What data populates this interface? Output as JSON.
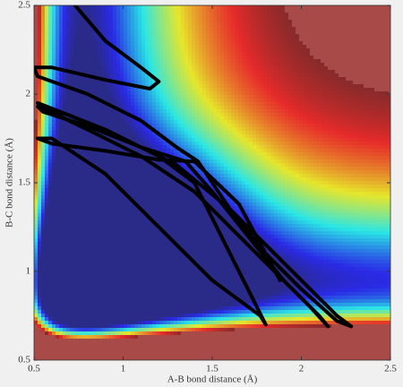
{
  "chart_data": {
    "type": "line",
    "x_label": "A-B bond distance (Å)",
    "y_label": "B-C bond distance (Å)",
    "xlim": [
      0.5,
      2.5
    ],
    "ylim": [
      0.5,
      2.5
    ],
    "xticks": [
      0.5,
      1,
      1.5,
      2,
      2.5
    ],
    "yticks": [
      0.5,
      1,
      1.5,
      2,
      2.5
    ],
    "series": [
      {
        "color": "#000000",
        "x": [
          0.73,
          0.9,
          1.1,
          1.2,
          1.15,
          0.9,
          0.6,
          0.5,
          0.52,
          0.8,
          1.1,
          1.3,
          1.42,
          1.6,
          1.8,
          2.0,
          2.2,
          2.28,
          2.2,
          1.95,
          1.6,
          1.3,
          1.0,
          0.7,
          0.52,
          0.55,
          0.8,
          1.1,
          1.35,
          1.5,
          1.7,
          1.9,
          2.1,
          2.15,
          2.05,
          1.7,
          1.4,
          1.1,
          0.8,
          0.55,
          0.52,
          0.9,
          1.2,
          1.4,
          1.6,
          1.75,
          1.8,
          1.77,
          1.5,
          1.2,
          0.9,
          0.6,
          0.52,
          0.6,
          0.9,
          1.2,
          1.4,
          1.65,
          1.88
        ],
        "y": [
          2.5,
          2.3,
          2.15,
          2.07,
          2.03,
          2.08,
          2.15,
          2.15,
          2.1,
          2.0,
          1.85,
          1.7,
          1.62,
          1.35,
          1.1,
          0.9,
          0.72,
          0.69,
          0.75,
          1.0,
          1.35,
          1.6,
          1.75,
          1.88,
          1.93,
          1.9,
          1.82,
          1.7,
          1.62,
          1.45,
          1.2,
          0.95,
          0.75,
          0.69,
          0.8,
          1.15,
          1.45,
          1.65,
          1.8,
          1.92,
          1.95,
          1.8,
          1.65,
          1.5,
          1.1,
          0.8,
          0.7,
          0.75,
          0.95,
          1.25,
          1.55,
          1.75,
          1.75,
          1.72,
          1.68,
          1.63,
          1.62,
          1.38,
          0.95
        ]
      }
    ]
  }
}
